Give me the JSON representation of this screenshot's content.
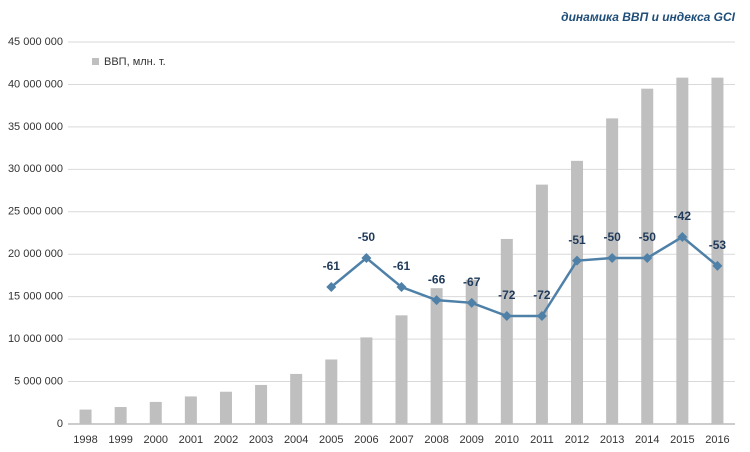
{
  "chart_data": {
    "type": "bar-line",
    "title": "динамика ВВП и индекса GCI",
    "categories": [
      "1998",
      "1999",
      "2000",
      "2001",
      "2002",
      "2003",
      "2004",
      "2005",
      "2006",
      "2007",
      "2008",
      "2009",
      "2010",
      "2011",
      "2012",
      "2013",
      "2014",
      "2015",
      "2016"
    ],
    "series": [
      {
        "name": "ВВП, млн. т.",
        "type": "bar",
        "color": "#bfbfbf",
        "values": [
          1700000,
          2000000,
          2600000,
          3250000,
          3800000,
          4600000,
          5900000,
          7600000,
          10200000,
          12800000,
          16000000,
          17000000,
          21800000,
          28200000,
          31000000,
          36000000,
          39500000,
          40800000,
          40800000
        ]
      },
      {
        "type": "line",
        "axis": "y2",
        "color": "#4f81a8",
        "values": [
          null,
          null,
          null,
          null,
          null,
          null,
          null,
          -61,
          -50,
          -61,
          -66,
          -67,
          -72,
          -72,
          -51,
          -50,
          -50,
          -42,
          -53
        ]
      }
    ],
    "ylim": [
      0,
      45000000
    ],
    "yticks": [
      0,
      {
        "value": 5000000,
        "label": "5 000 000"
      },
      {
        "value": 10000000,
        "label": "10 000 000"
      },
      {
        "value": 15000000,
        "label": "15 000 000"
      },
      {
        "value": 20000000,
        "label": "20 000 000"
      },
      {
        "value": 25000000,
        "label": "25 000 000"
      },
      {
        "value": 30000000,
        "label": "30 000 000"
      },
      {
        "value": 35000000,
        "label": "35 000 000"
      },
      {
        "value": 40000000,
        "label": "40 000 000"
      },
      {
        "value": 45000000,
        "label": "45 000 000"
      }
    ],
    "y2lim": [
      -113,
      32
    ],
    "grid": true,
    "legend": "top-left"
  }
}
